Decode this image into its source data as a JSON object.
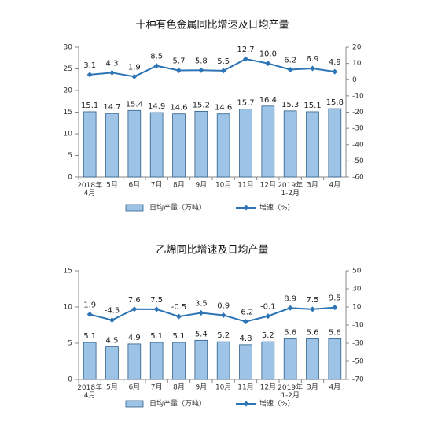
{
  "chart_data": [
    {
      "type": "bar_line",
      "title": "十种有色金属同比增速及日均产量",
      "categories": [
        "2018年\n4月",
        "5月",
        "6月",
        "7月",
        "8月",
        "9月",
        "10月",
        "11月",
        "12月",
        "2019年\n1-2月",
        "3月",
        "4月"
      ],
      "series": [
        {
          "name": "日均产量（万吨）",
          "type": "bar",
          "color": "#9dc3e6",
          "values": [
            15.1,
            14.7,
            15.4,
            14.9,
            14.6,
            15.2,
            14.6,
            15.7,
            16.4,
            15.3,
            15.1,
            15.8
          ]
        },
        {
          "name": "增速（%）",
          "type": "line",
          "axis": "y2",
          "color": "#2e75b6",
          "values": [
            3.1,
            4.3,
            1.9,
            8.5,
            5.7,
            5.8,
            5.5,
            12.7,
            10.0,
            6.2,
            6.9,
            4.9
          ],
          "value_labels": [
            "3.1",
            "4.3",
            "1.9",
            "8.5",
            "5.7",
            "5.8",
            "5.5",
            "12.7",
            "10.0",
            "6.2",
            "6.9",
            "4.9"
          ]
        }
      ],
      "ylim": [
        0,
        30
      ],
      "yticks": [
        0,
        5,
        10,
        15,
        20,
        25,
        30
      ],
      "y2lim": [
        -60,
        20
      ],
      "y2ticks": [
        -60,
        -50,
        -40,
        -30,
        -20,
        -10,
        0,
        10,
        20
      ],
      "legend": "bottom"
    },
    {
      "type": "bar_line",
      "title": "乙烯同比增速及日均产量",
      "categories": [
        "2018年\n4月",
        "5月",
        "6月",
        "7月",
        "8月",
        "9月",
        "10月",
        "11月",
        "12月",
        "2019年\n1-2月",
        "3月",
        "4月"
      ],
      "series": [
        {
          "name": "日均产量（万吨）",
          "type": "bar",
          "color": "#9dc3e6",
          "values": [
            5.1,
            4.5,
            4.9,
            5.1,
            5.1,
            5.4,
            5.2,
            4.8,
            5.2,
            5.6,
            5.6,
            5.6
          ]
        },
        {
          "name": "增速（%）",
          "type": "line",
          "axis": "y2",
          "color": "#2e75b6",
          "values": [
            1.9,
            -4.5,
            7.6,
            7.5,
            -0.5,
            3.5,
            0.9,
            -6.2,
            -0.1,
            8.9,
            7.5,
            9.5
          ]
        }
      ],
      "ylim": [
        0,
        15
      ],
      "yticks": [
        0,
        5,
        10,
        15
      ],
      "y2lim": [
        -70,
        50
      ],
      "y2ticks": [
        -70,
        -50,
        -30,
        -10,
        10,
        30,
        50
      ],
      "legend": "bottom"
    }
  ]
}
